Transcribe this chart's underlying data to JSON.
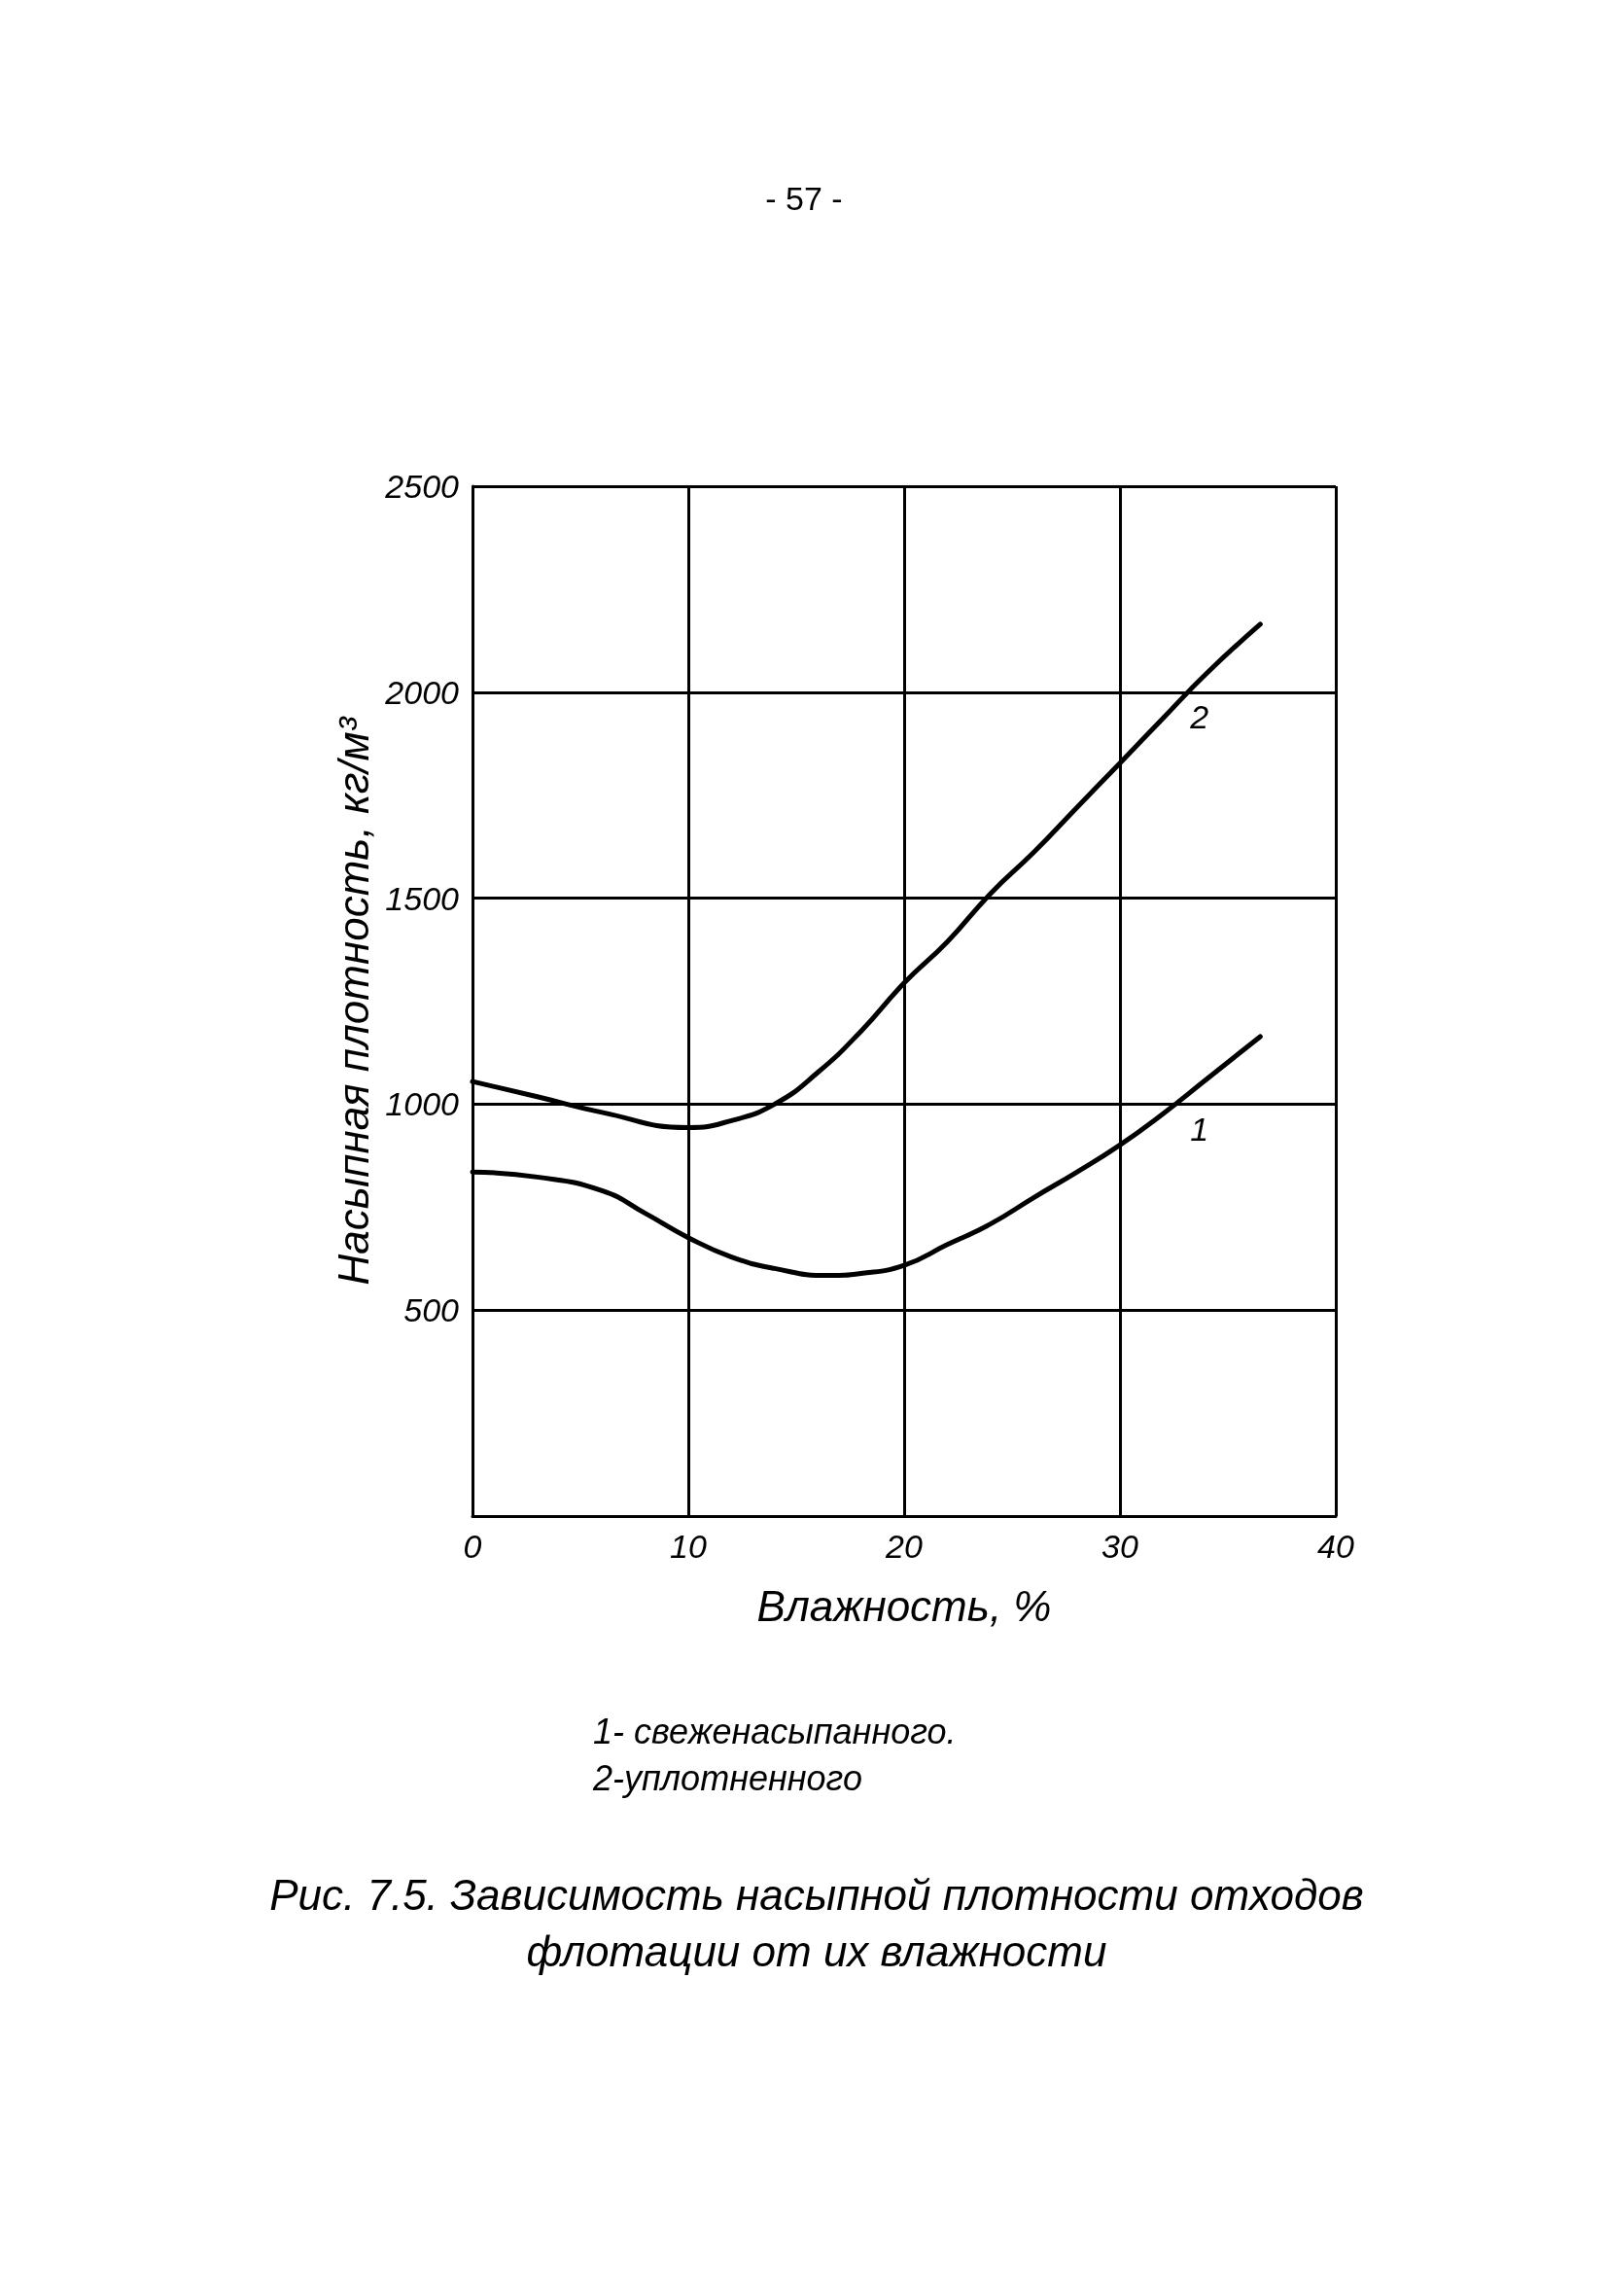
{
  "chart_data": {
    "type": "line",
    "title": "Рис. 7.5. Зависимость насыпной плотности отходов флотации от их влажности",
    "xlabel": "Влажность, %",
    "ylabel": "Насыпная плотность, кг/м³",
    "annotations": [
      "- 57 -",
      "1- свеженасыпанного.",
      "2-уплотненного"
    ],
    "x": [
      0,
      3,
      6,
      8,
      10,
      12,
      14,
      16.5,
      18,
      20,
      22,
      24,
      26,
      28,
      30,
      32,
      34,
      36.5
    ],
    "series": [
      {
        "name": "1",
        "color": "#000000",
        "values": [
          835,
          823,
          790,
          735,
          676,
          629,
          601,
          584,
          589,
          609,
          659,
          709,
          773,
          835,
          901,
          977,
          1060,
          1164
        ]
      },
      {
        "name": "2",
        "color": "#000000",
        "x": [
          0,
          3,
          6,
          10,
          12,
          14,
          16,
          18,
          20,
          22,
          24,
          26,
          28,
          30,
          32,
          34,
          36.5
        ],
        "values": [
          1055,
          1018,
          980,
          943,
          960,
          1000,
          1077,
          1177,
          1294,
          1394,
          1511,
          1611,
          1720,
          1828,
          1937,
          2045,
          2165
        ]
      }
    ],
    "xlim": [
      0,
      40
    ],
    "xticks": [
      0,
      10,
      20,
      30,
      40
    ],
    "ylim": [
      0,
      2500
    ],
    "yticks": [
      {
        "value": 0,
        "label": null
      },
      500,
      1000,
      1500,
      2000,
      2500
    ],
    "grid": true,
    "marker": "none",
    "line_style": "solid"
  }
}
